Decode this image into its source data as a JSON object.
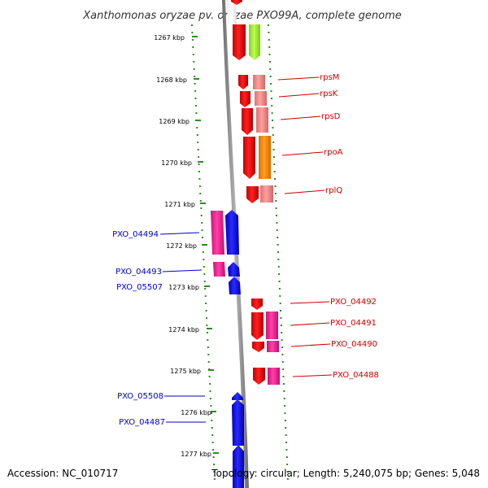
{
  "header": {
    "title": "Xanthomonas oryzae pv. oryzae PXO99A, complete genome"
  },
  "footer": {
    "accession": "Accession: NC_010717",
    "topology": "Topology: circular; Length: 5,240,075 bp; Genes: 5,048"
  },
  "ruler": {
    "ticks": [
      "1267 kbp",
      "1268 kbp",
      "1269 kbp",
      "1270 kbp",
      "1271 kbp",
      "1272 kbp",
      "1273 kbp",
      "1274 kbp",
      "1275 kbp",
      "1276 kbp",
      "1277 kbp"
    ]
  },
  "colors": {
    "backbone": "#8a8a8a",
    "reverse_label": "#0000cc",
    "forward_label": "#cc0000",
    "ruler": "#2e8b22"
  },
  "genes": {
    "forward_labeled": [
      "rpsM",
      "rpsK",
      "rpsD",
      "rpoA",
      "rplQ",
      "PXO_04492",
      "PXO_04491",
      "PXO_04490",
      "PXO_04488"
    ],
    "reverse_labeled": [
      "PXO_04494",
      "PXO_04493",
      "PXO_05507",
      "PXO_05508",
      "PXO_04487"
    ]
  }
}
